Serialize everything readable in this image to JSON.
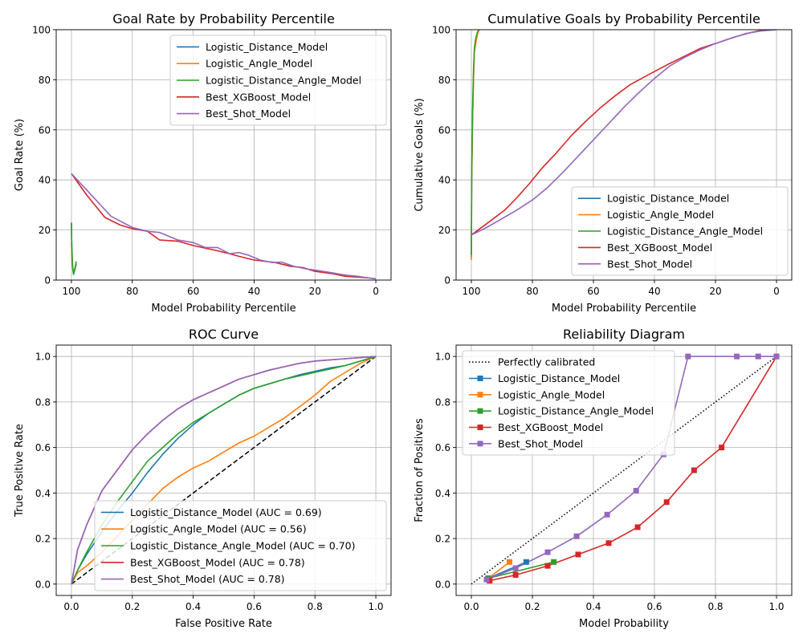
{
  "figure": {
    "width": 1000,
    "height": 800
  },
  "colors": {
    "Logistic_Distance_Model": "#1f77b4",
    "Logistic_Angle_Model": "#ff7f0e",
    "Logistic_Distance_Angle_Model": "#2ca02c",
    "Best_XGBoost_Model": "#d62728",
    "Best_Shot_Model": "#9467bd",
    "reference": "#000000",
    "grid": "#b0b0b0"
  },
  "chart_data": [
    {
      "id": "goal_rate",
      "type": "line",
      "title": "Goal Rate by Probability Percentile",
      "xlabel": "Model Probability Percentile",
      "ylabel": "Goal Rate (%)",
      "xlim": [
        105,
        -5
      ],
      "ylim": [
        0,
        100
      ],
      "xticks": [
        100,
        80,
        60,
        40,
        20,
        0
      ],
      "yticks": [
        0,
        20,
        40,
        60,
        80,
        100
      ],
      "grid": true,
      "legend": "top-right",
      "series": [
        {
          "name": "Logistic_Distance_Model",
          "x": [
            100,
            99.9,
            99.7,
            99.5,
            99.3,
            99,
            98.7,
            98.4
          ],
          "y": [
            23,
            14,
            7,
            4,
            2.8,
            3.5,
            5,
            6.5
          ]
        },
        {
          "name": "Logistic_Angle_Model",
          "x": [
            100,
            99.9,
            99.8,
            99.6,
            99.3,
            99,
            98.7,
            98.4
          ],
          "y": [
            15,
            10,
            7,
            5,
            3.5,
            4,
            5.5,
            6
          ]
        },
        {
          "name": "Logistic_Distance_Angle_Model",
          "x": [
            100,
            99.9,
            99.7,
            99.5,
            99.3,
            99,
            98.7,
            98.4
          ],
          "y": [
            22.5,
            15,
            8,
            4,
            2.2,
            3.5,
            5.5,
            7.5
          ]
        },
        {
          "name": "Best_XGBoost_Model",
          "x": [
            100,
            95,
            89,
            84,
            80,
            75,
            71,
            65,
            59,
            53,
            48,
            45,
            40,
            33,
            28,
            24,
            20,
            14,
            10,
            6,
            2,
            0
          ],
          "y": [
            42.5,
            34,
            25,
            22,
            20.5,
            19.5,
            16,
            15.5,
            13.5,
            12,
            10.5,
            9.5,
            8,
            7,
            5.5,
            5,
            3.5,
            2.5,
            1.5,
            1.2,
            0.8,
            0.5
          ]
        },
        {
          "name": "Best_Shot_Model",
          "x": [
            100,
            95,
            87,
            80,
            75,
            71,
            65,
            60,
            56,
            52,
            48,
            45,
            42,
            38,
            34,
            31,
            27,
            23,
            20,
            15,
            10,
            6,
            2,
            0
          ],
          "y": [
            42.5,
            36,
            25.5,
            21,
            19.5,
            19,
            16,
            15,
            13,
            13,
            10.5,
            11,
            10,
            8,
            7,
            7.2,
            5.5,
            4.5,
            4,
            3,
            2,
            1.5,
            0.8,
            0.5
          ]
        }
      ]
    },
    {
      "id": "cumulative_goals",
      "type": "line",
      "title": "Cumulative Goals by Probability Percentile",
      "xlabel": "Model Probability Percentile",
      "ylabel": "Cumulative Goals (%)",
      "xlim": [
        105,
        -5
      ],
      "ylim": [
        0,
        100
      ],
      "xticks": [
        100,
        80,
        60,
        40,
        20,
        0
      ],
      "yticks": [
        0,
        20,
        40,
        60,
        80,
        100
      ],
      "grid": true,
      "legend": "lower-right",
      "series": [
        {
          "name": "Logistic_Distance_Model",
          "x": [
            100,
            99.9,
            99.6,
            99.3,
            99,
            98.5,
            98,
            97.5
          ],
          "y": [
            9,
            40,
            65,
            82,
            92,
            96,
            98.5,
            100
          ]
        },
        {
          "name": "Logistic_Angle_Model",
          "x": [
            100,
            99.9,
            99.6,
            99.3,
            99,
            98.5,
            98,
            97.5
          ],
          "y": [
            8,
            38,
            63,
            80,
            91,
            95,
            98,
            100
          ]
        },
        {
          "name": "Logistic_Distance_Angle_Model",
          "x": [
            100,
            99.9,
            99.6,
            99.3,
            99,
            98.5,
            98,
            97.5
          ],
          "y": [
            10,
            42,
            68,
            84,
            93,
            97,
            99,
            100
          ]
        },
        {
          "name": "Best_XGBoost_Model",
          "x": [
            100,
            95,
            89,
            85,
            81,
            77,
            72,
            67,
            62,
            58,
            53,
            48,
            42,
            35,
            30,
            25,
            20,
            14,
            8,
            4,
            0
          ],
          "y": [
            18,
            22.5,
            28,
            33,
            38.5,
            44.5,
            51,
            58,
            64,
            68.5,
            73.5,
            78,
            82,
            86.5,
            89.5,
            92.5,
            94.5,
            97,
            99,
            100,
            100
          ]
        },
        {
          "name": "Best_Shot_Model",
          "x": [
            100,
            95,
            90,
            85,
            80,
            75,
            70,
            65,
            60,
            55,
            50,
            45,
            40,
            35,
            30,
            25,
            20,
            15,
            10,
            5,
            0
          ],
          "y": [
            18,
            21,
            24.5,
            28,
            32,
            37,
            43,
            49.5,
            56,
            62.5,
            69,
            75,
            80.5,
            85.5,
            89,
            92,
            94.5,
            96.5,
            98.5,
            99.5,
            100
          ]
        }
      ]
    },
    {
      "id": "roc",
      "type": "line",
      "title": "ROC Curve",
      "xlabel": "False Positive Rate",
      "ylabel": "True Positive Rate",
      "xlim": [
        -0.05,
        1.05
      ],
      "ylim": [
        -0.05,
        1.05
      ],
      "xticks": [
        0.0,
        0.2,
        0.4,
        0.6,
        0.8,
        1.0
      ],
      "yticks": [
        0.0,
        0.2,
        0.4,
        0.6,
        0.8,
        1.0
      ],
      "grid": true,
      "legend": "lower-right",
      "reference_line": {
        "x": [
          0,
          1
        ],
        "y": [
          0,
          1
        ],
        "style": "dashed"
      },
      "series": [
        {
          "name": "Logistic_Distance_Model",
          "label": "Logistic_Distance_Model (AUC = 0.69)",
          "x": [
            0,
            0.02,
            0.05,
            0.1,
            0.15,
            0.2,
            0.25,
            0.3,
            0.35,
            0.4,
            0.45,
            0.5,
            0.55,
            0.6,
            0.65,
            0.7,
            0.75,
            0.8,
            0.85,
            0.9,
            0.95,
            1.0
          ],
          "y": [
            0,
            0.06,
            0.13,
            0.23,
            0.32,
            0.4,
            0.49,
            0.57,
            0.64,
            0.7,
            0.75,
            0.79,
            0.83,
            0.86,
            0.88,
            0.9,
            0.92,
            0.935,
            0.95,
            0.96,
            0.98,
            1.0
          ]
        },
        {
          "name": "Logistic_Angle_Model",
          "label": "Logistic_Angle_Model (AUC = 0.56)",
          "x": [
            0,
            0.02,
            0.05,
            0.1,
            0.15,
            0.2,
            0.25,
            0.3,
            0.35,
            0.4,
            0.45,
            0.5,
            0.55,
            0.6,
            0.65,
            0.7,
            0.75,
            0.8,
            0.85,
            0.9,
            0.95,
            1.0
          ],
          "y": [
            0,
            0.05,
            0.08,
            0.14,
            0.21,
            0.28,
            0.35,
            0.42,
            0.47,
            0.51,
            0.54,
            0.58,
            0.62,
            0.65,
            0.69,
            0.73,
            0.78,
            0.83,
            0.89,
            0.93,
            0.97,
            1.0
          ]
        },
        {
          "name": "Logistic_Distance_Angle_Model",
          "label": "Logistic_Distance_Angle_Model (AUC = 0.70)",
          "x": [
            0,
            0.02,
            0.05,
            0.1,
            0.15,
            0.2,
            0.25,
            0.3,
            0.35,
            0.4,
            0.45,
            0.5,
            0.55,
            0.6,
            0.65,
            0.7,
            0.75,
            0.8,
            0.85,
            0.9,
            0.95,
            1.0
          ],
          "y": [
            0,
            0.06,
            0.14,
            0.26,
            0.36,
            0.45,
            0.54,
            0.6,
            0.66,
            0.71,
            0.75,
            0.79,
            0.83,
            0.86,
            0.88,
            0.9,
            0.915,
            0.93,
            0.945,
            0.96,
            0.98,
            1.0
          ]
        },
        {
          "name": "Best_XGBoost_Model",
          "label": "Best_XGBoost_Model (AUC = 0.78)",
          "x": [
            0,
            0.02,
            0.05,
            0.1,
            0.15,
            0.2,
            0.25,
            0.3,
            0.35,
            0.4,
            0.45,
            0.5,
            0.55,
            0.6,
            0.65,
            0.7,
            0.75,
            0.8,
            0.85,
            0.9,
            0.95,
            1.0
          ],
          "y": [
            0,
            0.15,
            0.26,
            0.41,
            0.5,
            0.59,
            0.66,
            0.72,
            0.77,
            0.81,
            0.84,
            0.87,
            0.9,
            0.92,
            0.94,
            0.955,
            0.97,
            0.98,
            0.985,
            0.99,
            0.995,
            1.0
          ]
        },
        {
          "name": "Best_Shot_Model",
          "label": "Best_Shot_Model (AUC = 0.78)",
          "x": [
            0,
            0.02,
            0.05,
            0.1,
            0.15,
            0.2,
            0.25,
            0.3,
            0.35,
            0.4,
            0.45,
            0.5,
            0.55,
            0.6,
            0.65,
            0.7,
            0.75,
            0.8,
            0.85,
            0.9,
            0.95,
            1.0
          ],
          "y": [
            0,
            0.15,
            0.26,
            0.41,
            0.5,
            0.59,
            0.66,
            0.72,
            0.77,
            0.81,
            0.84,
            0.87,
            0.9,
            0.92,
            0.94,
            0.955,
            0.97,
            0.98,
            0.985,
            0.99,
            0.995,
            1.0
          ]
        }
      ]
    },
    {
      "id": "reliability",
      "type": "line",
      "title": "Reliability Diagram",
      "xlabel": "Model Probability",
      "ylabel": "Fraction of Positives",
      "xlim": [
        -0.05,
        1.05
      ],
      "ylim": [
        -0.05,
        1.05
      ],
      "xticks": [
        0.0,
        0.2,
        0.4,
        0.6,
        0.8,
        1.0
      ],
      "yticks": [
        0.0,
        0.2,
        0.4,
        0.6,
        0.8,
        1.0
      ],
      "grid": true,
      "legend": "top-left",
      "reference_line": {
        "label": "Perfectly calibrated",
        "x": [
          0,
          1
        ],
        "y": [
          0,
          1
        ],
        "style": "dotted"
      },
      "series": [
        {
          "name": "Logistic_Distance_Model",
          "x": [
            0.055,
            0.18
          ],
          "y": [
            0.025,
            0.097
          ]
        },
        {
          "name": "Logistic_Angle_Model",
          "x": [
            0.055,
            0.125
          ],
          "y": [
            0.025,
            0.097
          ]
        },
        {
          "name": "Logistic_Distance_Angle_Model",
          "x": [
            0.055,
            0.27
          ],
          "y": [
            0.025,
            0.097
          ]
        },
        {
          "name": "Best_XGBoost_Model",
          "x": [
            0.06,
            0.145,
            0.25,
            0.35,
            0.45,
            0.545,
            0.64,
            0.73,
            0.82,
            1.0
          ],
          "y": [
            0.015,
            0.04,
            0.08,
            0.13,
            0.18,
            0.25,
            0.36,
            0.5,
            0.6,
            1.0
          ]
        },
        {
          "name": "Best_Shot_Model",
          "x": [
            0.05,
            0.145,
            0.25,
            0.345,
            0.445,
            0.54,
            0.63,
            0.71,
            0.87,
            0.94,
            1.0
          ],
          "y": [
            0.02,
            0.07,
            0.14,
            0.21,
            0.305,
            0.41,
            0.57,
            1.0,
            1.0,
            1.0,
            1.0
          ]
        }
      ]
    }
  ]
}
